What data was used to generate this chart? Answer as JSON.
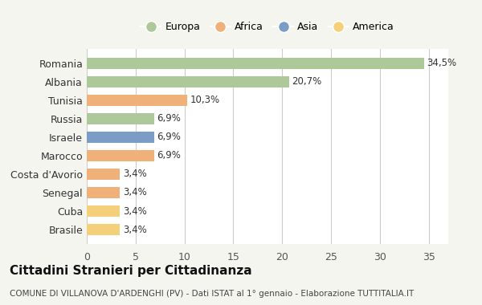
{
  "countries": [
    "Romania",
    "Albania",
    "Tunisia",
    "Russia",
    "Israele",
    "Marocco",
    "Costa d'Avorio",
    "Senegal",
    "Cuba",
    "Brasile"
  ],
  "values": [
    34.5,
    20.7,
    10.3,
    6.9,
    6.9,
    6.9,
    3.4,
    3.4,
    3.4,
    3.4
  ],
  "labels": [
    "34,5%",
    "20,7%",
    "10,3%",
    "6,9%",
    "6,9%",
    "6,9%",
    "3,4%",
    "3,4%",
    "3,4%",
    "3,4%"
  ],
  "colors": [
    "#adc899",
    "#adc899",
    "#f0b07a",
    "#adc899",
    "#7b9dc5",
    "#f0b07a",
    "#f0b07a",
    "#f0b07a",
    "#f5d07a",
    "#f5d07a"
  ],
  "legend_labels": [
    "Europa",
    "Africa",
    "Asia",
    "America"
  ],
  "legend_colors": [
    "#adc899",
    "#f0b07a",
    "#7b9dc5",
    "#f5d07a"
  ],
  "title": "Cittadini Stranieri per Cittadinanza",
  "subtitle": "COMUNE DI VILLANOVA D'ARDENGHI (PV) - Dati ISTAT al 1° gennaio - Elaborazione TUTTITALIA.IT",
  "xlim": [
    0,
    37
  ],
  "xticks": [
    0,
    5,
    10,
    15,
    20,
    25,
    30,
    35
  ],
  "bg_color": "#f5f5f0",
  "bar_bg_color": "#ffffff"
}
